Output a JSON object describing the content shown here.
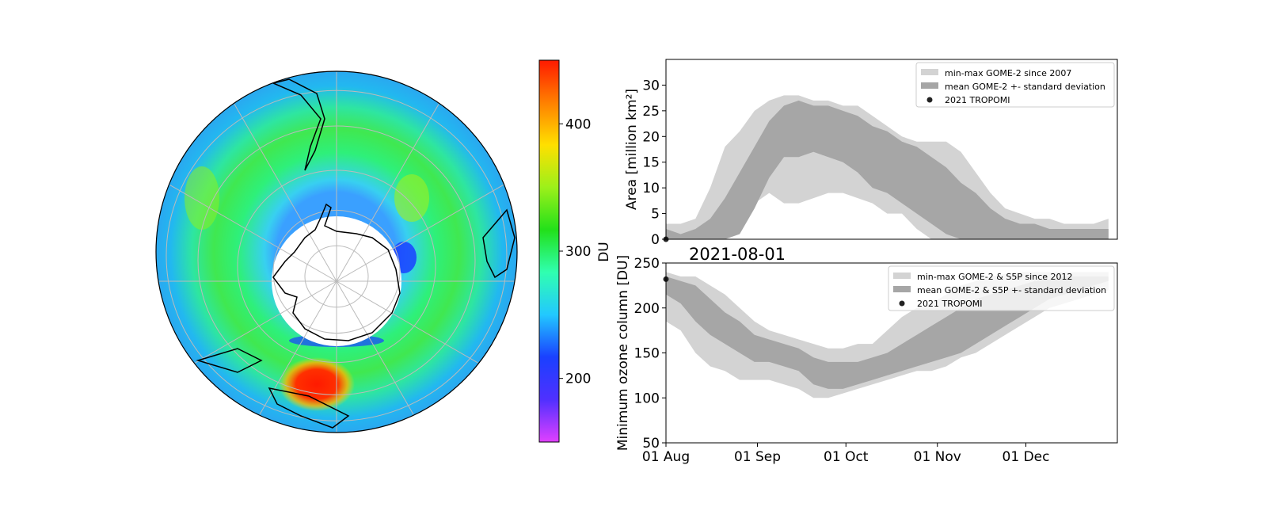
{
  "colors": {
    "minmax": "#d3d3d3",
    "meanstd": "#a6a6a6",
    "dot": "#222222"
  },
  "map": {
    "colorbar": {
      "label": "DU",
      "min": 150,
      "max": 450,
      "ticks": [
        200,
        300,
        400
      ],
      "tick_labels": [
        "200",
        "300",
        "400"
      ],
      "colors": [
        "#e040ff",
        "#5030ff",
        "#1a40ff",
        "#22c8ff",
        "#30ffb0",
        "#22e01a",
        "#9cf01a",
        "#ffe000",
        "#ff8000",
        "#ff1a00"
      ]
    }
  },
  "date_title": "2021-08-01",
  "chart_data": [
    {
      "type": "area",
      "title": "",
      "xlabel": "",
      "ylabel": "Area [million km²]",
      "ylim": [
        0,
        35
      ],
      "yticks": [
        0,
        5,
        10,
        15,
        20,
        25,
        30
      ],
      "ytick_labels": [
        "0",
        "5",
        "10",
        "15",
        "20",
        "25",
        "30"
      ],
      "x_days_since_aug1": [
        0,
        5,
        10,
        15,
        20,
        25,
        30,
        35,
        40,
        45,
        50,
        55,
        60,
        65,
        70,
        75,
        80,
        85,
        90,
        95,
        100,
        105,
        110,
        115,
        120,
        125,
        130,
        135,
        140,
        145,
        150
      ],
      "xlim_days": [
        0,
        153
      ],
      "legend": {
        "placement": "top-right",
        "entries": [
          "min-max GOME-2 since 2007",
          "mean GOME-2  +- standard deviation",
          "2021  TROPOMI"
        ]
      },
      "series": [
        {
          "name": "min-max GOME-2 since 2007",
          "kind": "band",
          "lower": [
            0,
            0,
            0,
            0,
            2,
            5,
            7,
            9,
            7,
            7,
            8,
            9,
            9,
            8,
            7,
            5,
            5,
            2,
            0,
            0,
            0,
            0,
            0,
            0,
            0,
            0,
            0,
            0,
            0,
            0,
            0
          ],
          "upper": [
            3,
            3,
            4,
            10,
            18,
            21,
            25,
            27,
            28,
            28,
            27,
            27,
            26,
            26,
            24,
            22,
            20,
            19,
            19,
            19,
            17,
            13,
            9,
            6,
            5,
            4,
            4,
            3,
            3,
            3,
            4
          ]
        },
        {
          "name": "mean GOME-2  +- standard deviation",
          "kind": "band",
          "lower": [
            0,
            0,
            0,
            0,
            0,
            1,
            6,
            12,
            16,
            16,
            17,
            16,
            15,
            13,
            10,
            9,
            7,
            5,
            3,
            1,
            0,
            0,
            0,
            0,
            0,
            0,
            0,
            0,
            0,
            0,
            0
          ],
          "upper": [
            2,
            1,
            2,
            4,
            8,
            13,
            18,
            23,
            26,
            27,
            26,
            26,
            25,
            24,
            22,
            21,
            19,
            18,
            16,
            14,
            11,
            9,
            6,
            4,
            3,
            3,
            2,
            2,
            2,
            2,
            2
          ]
        },
        {
          "name": "2021  TROPOMI",
          "kind": "points",
          "x": [
            0
          ],
          "y": [
            0
          ]
        }
      ]
    },
    {
      "type": "area",
      "title": "",
      "xlabel": "",
      "ylabel": "Minimum ozone column [DU]",
      "ylim": [
        50,
        250
      ],
      "yticks": [
        50,
        100,
        150,
        200,
        250
      ],
      "ytick_labels": [
        "50",
        "100",
        "150",
        "200",
        "250"
      ],
      "xticks_days": [
        0,
        31,
        61,
        92,
        122
      ],
      "xtick_labels": [
        "01 Aug",
        "01 Sep",
        "01 Oct",
        "01 Nov",
        "01 Dec"
      ],
      "x_days_since_aug1": [
        0,
        5,
        10,
        15,
        20,
        25,
        30,
        35,
        40,
        45,
        50,
        55,
        60,
        65,
        70,
        75,
        80,
        85,
        90,
        95,
        100,
        105,
        110,
        115,
        120,
        125,
        130,
        135,
        140,
        145,
        150
      ],
      "xlim_days": [
        0,
        153
      ],
      "legend": {
        "placement": "top-right",
        "entries": [
          "min-max GOME-2 & S5P since 2012",
          "mean GOME-2 & S5P  +- standard deviation",
          "2021  TROPOMI"
        ]
      },
      "series": [
        {
          "name": "min-max GOME-2 & S5P since 2012",
          "kind": "band",
          "lower": [
            185,
            175,
            150,
            135,
            130,
            120,
            120,
            120,
            115,
            110,
            100,
            100,
            105,
            110,
            115,
            120,
            125,
            130,
            130,
            135,
            145,
            150,
            160,
            170,
            180,
            190,
            200,
            205,
            210,
            215,
            220
          ],
          "upper": [
            240,
            235,
            235,
            225,
            215,
            200,
            185,
            175,
            170,
            165,
            160,
            155,
            155,
            160,
            160,
            175,
            190,
            200,
            205,
            215,
            225,
            230,
            235,
            238,
            240,
            240,
            240,
            240,
            240,
            240,
            240
          ]
        },
        {
          "name": "mean GOME-2 & S5P  +- standard deviation",
          "kind": "band",
          "lower": [
            215,
            205,
            185,
            170,
            160,
            150,
            140,
            140,
            135,
            130,
            115,
            110,
            110,
            115,
            120,
            125,
            130,
            135,
            140,
            145,
            150,
            160,
            170,
            180,
            190,
            200,
            210,
            215,
            220,
            225,
            230
          ],
          "upper": [
            235,
            230,
            225,
            210,
            195,
            185,
            170,
            165,
            160,
            155,
            145,
            140,
            140,
            140,
            145,
            150,
            160,
            170,
            180,
            190,
            200,
            210,
            215,
            220,
            225,
            230,
            232,
            235,
            235,
            235,
            235
          ]
        },
        {
          "name": "2021  TROPOMI",
          "kind": "points",
          "x": [
            0
          ],
          "y": [
            232
          ]
        }
      ]
    }
  ]
}
